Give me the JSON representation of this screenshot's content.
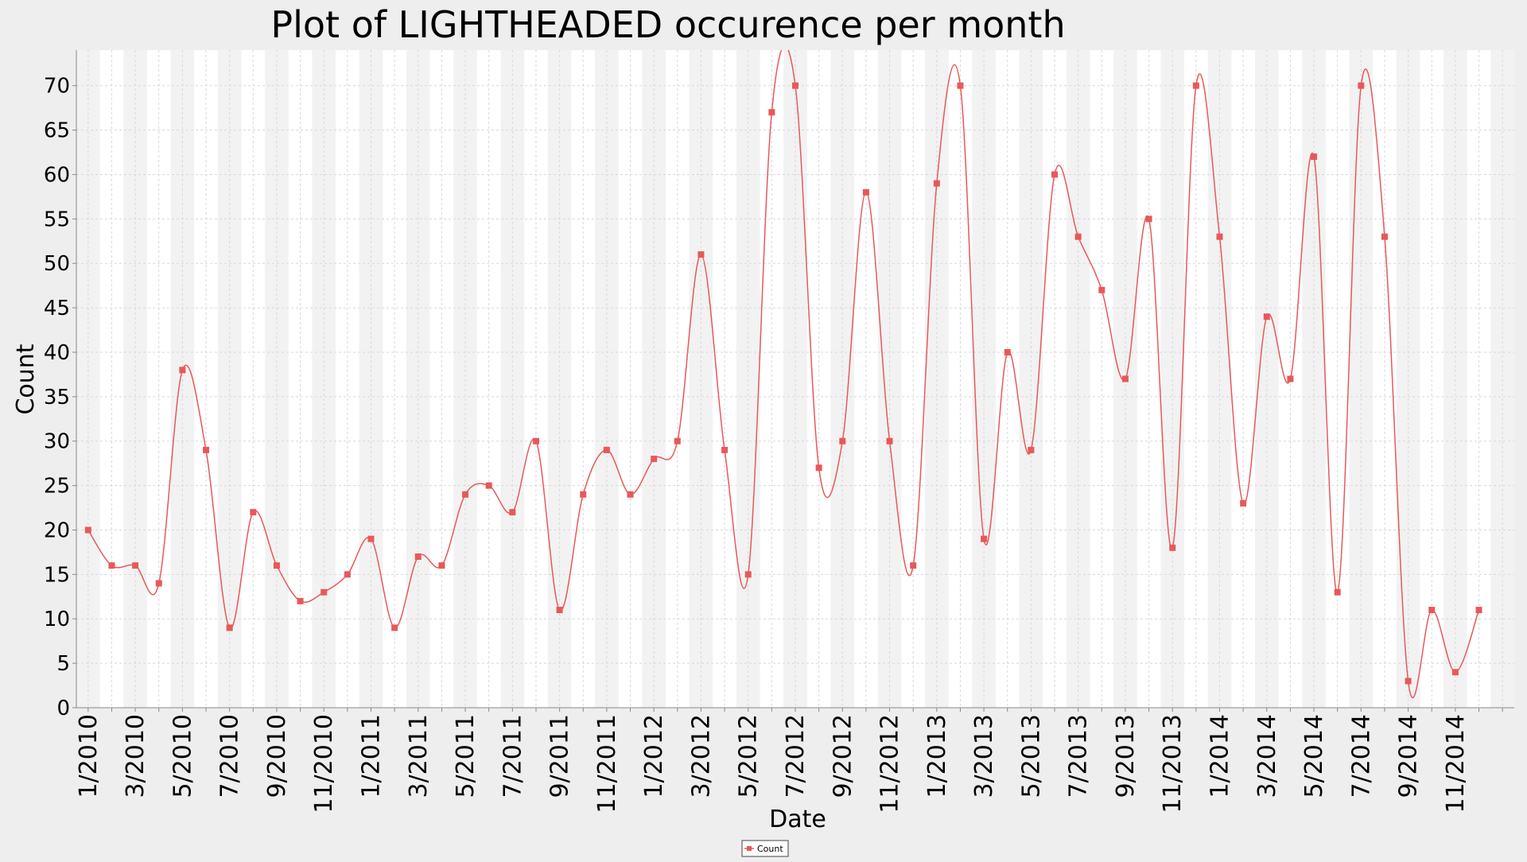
{
  "chart_data": {
    "type": "line",
    "title": "Plot of LIGHTHEADED occurence per month",
    "xlabel": "Date",
    "ylabel": "Count",
    "ylim": [
      0,
      74
    ],
    "yticks": [
      0,
      5,
      10,
      15,
      20,
      25,
      30,
      35,
      40,
      45,
      50,
      55,
      60,
      65,
      70
    ],
    "xtick_labels": [
      "1/2010",
      "3/2010",
      "5/2010",
      "7/2010",
      "9/2010",
      "11/2010",
      "1/2011",
      "3/2011",
      "5/2011",
      "7/2011",
      "9/2011",
      "11/2011",
      "1/2012",
      "3/2012",
      "5/2012",
      "7/2012",
      "9/2012",
      "11/2012",
      "1/2013",
      "3/2013",
      "5/2013",
      "7/2013",
      "9/2013",
      "11/2013",
      "1/2014",
      "3/2014",
      "5/2014",
      "7/2014",
      "9/2014",
      "11/2014"
    ],
    "grid": true,
    "legend_position": "bottom-center",
    "colors": {
      "series": "#e8585a",
      "plot_bg_light": "#ffffff",
      "plot_bg_band": "#f2f2f2",
      "page_bg": "#eeeeee"
    },
    "series": [
      {
        "name": "Count",
        "x": [
          "1/2010",
          "2/2010",
          "3/2010",
          "4/2010",
          "5/2010",
          "6/2010",
          "7/2010",
          "8/2010",
          "9/2010",
          "10/2010",
          "11/2010",
          "12/2010",
          "1/2011",
          "2/2011",
          "3/2011",
          "4/2011",
          "5/2011",
          "6/2011",
          "7/2011",
          "8/2011",
          "9/2011",
          "10/2011",
          "11/2011",
          "12/2011",
          "1/2012",
          "2/2012",
          "3/2012",
          "4/2012",
          "5/2012",
          "6/2012",
          "7/2012",
          "8/2012",
          "9/2012",
          "10/2012",
          "11/2012",
          "12/2012",
          "1/2013",
          "2/2013",
          "3/2013",
          "4/2013",
          "5/2013",
          "6/2013",
          "7/2013",
          "8/2013",
          "9/2013",
          "10/2013",
          "11/2013",
          "12/2013",
          "1/2014",
          "2/2014",
          "3/2014",
          "4/2014",
          "5/2014",
          "6/2014",
          "7/2014",
          "8/2014",
          "9/2014",
          "10/2014",
          "11/2014",
          "12/2014"
        ],
        "values": [
          20,
          16,
          16,
          14,
          38,
          29,
          9,
          22,
          16,
          12,
          13,
          15,
          19,
          9,
          17,
          16,
          24,
          25,
          22,
          30,
          11,
          24,
          29,
          24,
          28,
          30,
          51,
          29,
          15,
          67,
          70,
          27,
          30,
          58,
          30,
          16,
          59,
          70,
          19,
          40,
          29,
          60,
          53,
          47,
          37,
          55,
          18,
          70,
          53,
          23,
          44,
          37,
          62,
          13,
          70,
          53,
          3,
          11,
          4,
          11
        ]
      }
    ]
  }
}
